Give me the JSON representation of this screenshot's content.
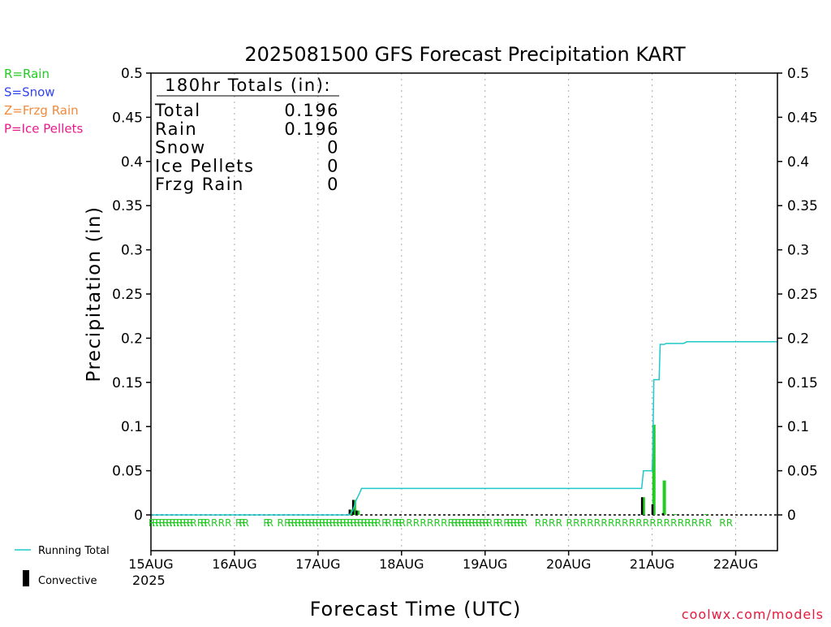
{
  "chart_data": {
    "type": "bar",
    "title": "2025081500 GFS Forecast Precipitation KART",
    "xlabel": "Forecast Time (UTC)",
    "ylabel": "Precipitation (in)",
    "ylim": [
      0,
      0.5
    ],
    "yticks": [
      "0",
      "0.05",
      "0.1",
      "0.15",
      "0.2",
      "0.25",
      "0.3",
      "0.35",
      "0.4",
      "0.45",
      "0.5"
    ],
    "xticks": [
      "15AUG",
      "16AUG",
      "17AUG",
      "18AUG",
      "19AUG",
      "20AUG",
      "21AUG",
      "22AUG"
    ],
    "xtick_year": "2025",
    "grid": true,
    "legend_precip_types": [
      {
        "label": "R=Rain",
        "color": "#22cc22"
      },
      {
        "label": "S=Snow",
        "color": "#3344ee"
      },
      {
        "label": "Z=Frzg Rain",
        "color": "#f08a3c"
      },
      {
        "label": "P=Ice Pellets",
        "color": "#e8198c"
      }
    ],
    "legend_series": [
      {
        "label": "Running Total",
        "color": "#1ec8c8"
      },
      {
        "label": "Convective",
        "color": "#000000"
      }
    ],
    "totals": {
      "heading": "180hr Totals (in):",
      "rows": [
        {
          "label": "Total",
          "value": "0.196"
        },
        {
          "label": "Rain",
          "value": "0.196"
        },
        {
          "label": "Snow",
          "value": "0"
        },
        {
          "label": "Ice Pellets",
          "value": "0"
        },
        {
          "label": "Frzg Rain",
          "value": "0"
        }
      ]
    },
    "series": [
      {
        "name": "Running Total",
        "points": [
          [
            0,
            0
          ],
          [
            57,
            0
          ],
          [
            58,
            0.005
          ],
          [
            58.5,
            0.011
          ],
          [
            59,
            0.017
          ],
          [
            60,
            0.025
          ],
          [
            60.5,
            0.03
          ],
          [
            78,
            0.03
          ],
          [
            141,
            0.03
          ],
          [
            141.5,
            0.05
          ],
          [
            144,
            0.05
          ],
          [
            144.2,
            0.075
          ],
          [
            144.5,
            0.153
          ],
          [
            146,
            0.153
          ],
          [
            146.3,
            0.193
          ],
          [
            147.5,
            0.193
          ],
          [
            148,
            0.194
          ],
          [
            153,
            0.194
          ],
          [
            154,
            0.196
          ],
          [
            180,
            0.196
          ]
        ]
      },
      {
        "name": "Rain",
        "bars": [
          [
            57.5,
            0.006
          ],
          [
            58.5,
            0.017
          ],
          [
            59.5,
            0.005
          ],
          [
            141.5,
            0.02
          ],
          [
            144.5,
            0.102
          ],
          [
            147.5,
            0.039
          ],
          [
            150.5,
            0.001
          ],
          [
            159.5,
            0.001
          ]
        ]
      },
      {
        "name": "Convective",
        "bars": [
          [
            57.5,
            0.006
          ],
          [
            58.5,
            0.017
          ],
          [
            59.5,
            0.005
          ],
          [
            141.5,
            0.02
          ],
          [
            144.5,
            0.012
          ],
          [
            147.5,
            0.002
          ]
        ]
      }
    ],
    "precip_type_marks": {
      "symbol": "R",
      "hours": [
        0,
        1,
        2,
        3,
        4,
        5,
        6,
        7,
        8,
        9,
        10,
        11,
        12,
        14,
        15,
        16,
        18,
        20,
        22,
        25,
        26,
        27,
        33,
        34,
        37,
        39,
        40,
        41,
        42,
        43,
        44,
        45,
        46,
        47,
        48,
        49,
        50,
        51,
        52,
        53,
        54,
        55,
        56,
        57,
        58,
        59,
        60,
        61,
        62,
        63,
        64,
        65,
        67,
        68,
        70,
        71,
        72,
        74,
        76,
        78,
        80,
        82,
        84,
        86,
        87,
        88,
        89,
        90,
        91,
        92,
        93,
        94,
        95,
        96,
        97,
        99,
        100,
        102,
        103,
        104,
        105,
        106,
        107,
        111,
        113,
        115,
        117,
        120,
        122,
        124,
        126,
        128,
        130,
        132,
        134,
        136,
        138,
        140,
        142,
        144,
        146,
        148,
        150,
        152,
        154,
        156,
        158,
        160,
        164,
        166
      ]
    },
    "footer": "coolwx.com/models"
  }
}
